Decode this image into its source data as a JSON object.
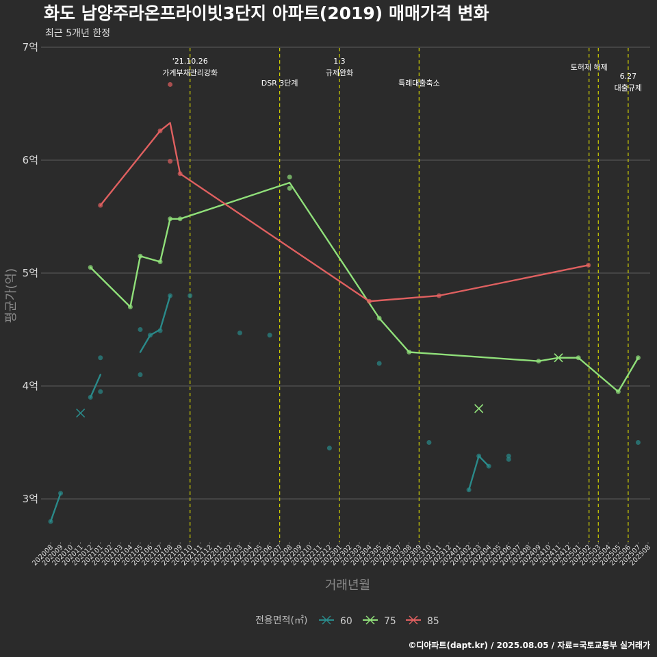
{
  "chart_data": {
    "type": "line",
    "title": "화도 남양주라온프라이빗3단지 아파트(2019) 매매가격 변화",
    "subtitle": "최근 5개년 한정",
    "xlabel": "거래년월",
    "ylabel": "평균가(억)",
    "caption": "©디아파트(dapt.kr) / 2025.08.05 / 자료=국토교통부 실거래가",
    "ylim": [
      2.65,
      7.0
    ],
    "y_ticks": [
      3,
      4,
      5,
      6,
      7
    ],
    "y_tick_labels": [
      "3억",
      "4억",
      "5억",
      "6억",
      "7억"
    ],
    "grid": true,
    "legend_title": "전용면적(㎡)",
    "legend_position": "bottom",
    "x_ticks": [
      "202008",
      "202009",
      "202010",
      "202011",
      "202012",
      "202101",
      "202102",
      "202103",
      "202104",
      "202105",
      "202106",
      "202107",
      "202108",
      "202109",
      "202110",
      "202111",
      "202112",
      "202201",
      "202202",
      "202203",
      "202204",
      "202205",
      "202206",
      "202207",
      "202208",
      "202209",
      "202210",
      "202211",
      "202212",
      "202301",
      "202302",
      "202303",
      "202304",
      "202305",
      "202306",
      "202307",
      "202308",
      "202309",
      "202310",
      "202311",
      "202312",
      "202401",
      "202402",
      "202403",
      "202404",
      "202405",
      "202406",
      "202407",
      "202408",
      "202409",
      "202410",
      "202411",
      "202412",
      "202501",
      "202502",
      "202503",
      "202504",
      "202505",
      "202506",
      "202507",
      "202508"
    ],
    "events": [
      {
        "x": "202110",
        "lines": [
          "'21.10.26",
          "가계부채관리강화"
        ]
      },
      {
        "x": "202207",
        "lines": [
          "DSR 3단계"
        ]
      },
      {
        "x": "202301",
        "lines": [
          "1.3",
          "규제완화"
        ]
      },
      {
        "x": "202309",
        "lines": [
          "특례대출축소"
        ]
      },
      {
        "x": "202502",
        "lines": [
          "토허제 해제"
        ]
      },
      {
        "x": "202503",
        "lines": []
      },
      {
        "x": "202506",
        "lines": [
          "6.27",
          "대출규제"
        ]
      }
    ],
    "series": [
      {
        "name": "60",
        "color": "#2a8a8a",
        "line_segments": [
          [
            [
              "202008",
              2.8
            ],
            [
              "202009",
              3.05
            ]
          ],
          [
            [
              "202012",
              3.9
            ],
            [
              "202101",
              4.1
            ]
          ],
          [
            [
              "202105",
              4.3
            ],
            [
              "202106",
              4.45
            ],
            [
              "202107",
              4.5
            ],
            [
              "202108",
              4.8
            ]
          ],
          [
            [
              "202402",
              3.08
            ],
            [
              "202403",
              3.38
            ],
            [
              "202404",
              3.29
            ]
          ]
        ],
        "points": [
          [
            "202008",
            2.8
          ],
          [
            "202009",
            3.05
          ],
          [
            "202012",
            3.9
          ],
          [
            "202101",
            4.25
          ],
          [
            "202101",
            3.95
          ],
          [
            "202105",
            4.5
          ],
          [
            "202105",
            4.1
          ],
          [
            "202106",
            4.45
          ],
          [
            "202107",
            4.49
          ],
          [
            "202108",
            4.8
          ],
          [
            "202110",
            4.8
          ],
          [
            "202203",
            4.47
          ],
          [
            "202206",
            4.45
          ],
          [
            "202212",
            3.45
          ],
          [
            "202305",
            4.2
          ],
          [
            "202310",
            3.5
          ],
          [
            "202402",
            3.08
          ],
          [
            "202403",
            3.38
          ],
          [
            "202404",
            3.29
          ],
          [
            "202406",
            3.35
          ],
          [
            "202406",
            3.38
          ],
          [
            "202507",
            3.5
          ]
        ],
        "cross_markers": [
          [
            "202011",
            3.76
          ]
        ]
      },
      {
        "name": "75",
        "color": "#90e07a",
        "line_segments": [
          [
            [
              "202012",
              5.05
            ],
            [
              "202104",
              4.7
            ],
            [
              "202105",
              5.15
            ],
            [
              "202107",
              5.1
            ],
            [
              "202108",
              5.48
            ],
            [
              "202109",
              5.48
            ],
            [
              "202208",
              5.8
            ],
            [
              "202305",
              4.6
            ],
            [
              "202308",
              4.3
            ],
            [
              "202409",
              4.22
            ],
            [
              "202411",
              4.25
            ],
            [
              "202501",
              4.25
            ],
            [
              "202505",
              3.95
            ],
            [
              "202507",
              4.25
            ]
          ]
        ],
        "points": [
          [
            "202012",
            5.05
          ],
          [
            "202104",
            4.7
          ],
          [
            "202105",
            5.15
          ],
          [
            "202107",
            5.1
          ],
          [
            "202108",
            5.48
          ],
          [
            "202109",
            5.48
          ],
          [
            "202208",
            5.85
          ],
          [
            "202208",
            5.75
          ],
          [
            "202305",
            4.6
          ],
          [
            "202308",
            4.3
          ],
          [
            "202409",
            4.22
          ],
          [
            "202501",
            4.25
          ],
          [
            "202505",
            3.95
          ],
          [
            "202507",
            4.25
          ]
        ],
        "cross_markers": [
          [
            "202403",
            3.8
          ],
          [
            "202411",
            4.25
          ]
        ]
      },
      {
        "name": "85",
        "color": "#e06060",
        "line_segments": [
          [
            [
              "202101",
              5.6
            ],
            [
              "202107",
              6.26
            ],
            [
              "202108",
              6.33
            ],
            [
              "202109",
              5.88
            ],
            [
              "202304",
              4.75
            ],
            [
              "202311",
              4.8
            ],
            [
              "202502",
              5.07
            ]
          ]
        ],
        "points": [
          [
            "202101",
            5.6
          ],
          [
            "202107",
            6.26
          ],
          [
            "202108",
            6.67
          ],
          [
            "202108",
            5.99
          ],
          [
            "202109",
            5.88
          ],
          [
            "202304",
            4.75
          ],
          [
            "202311",
            4.8
          ],
          [
            "202502",
            5.07
          ]
        ],
        "cross_markers": []
      }
    ]
  }
}
